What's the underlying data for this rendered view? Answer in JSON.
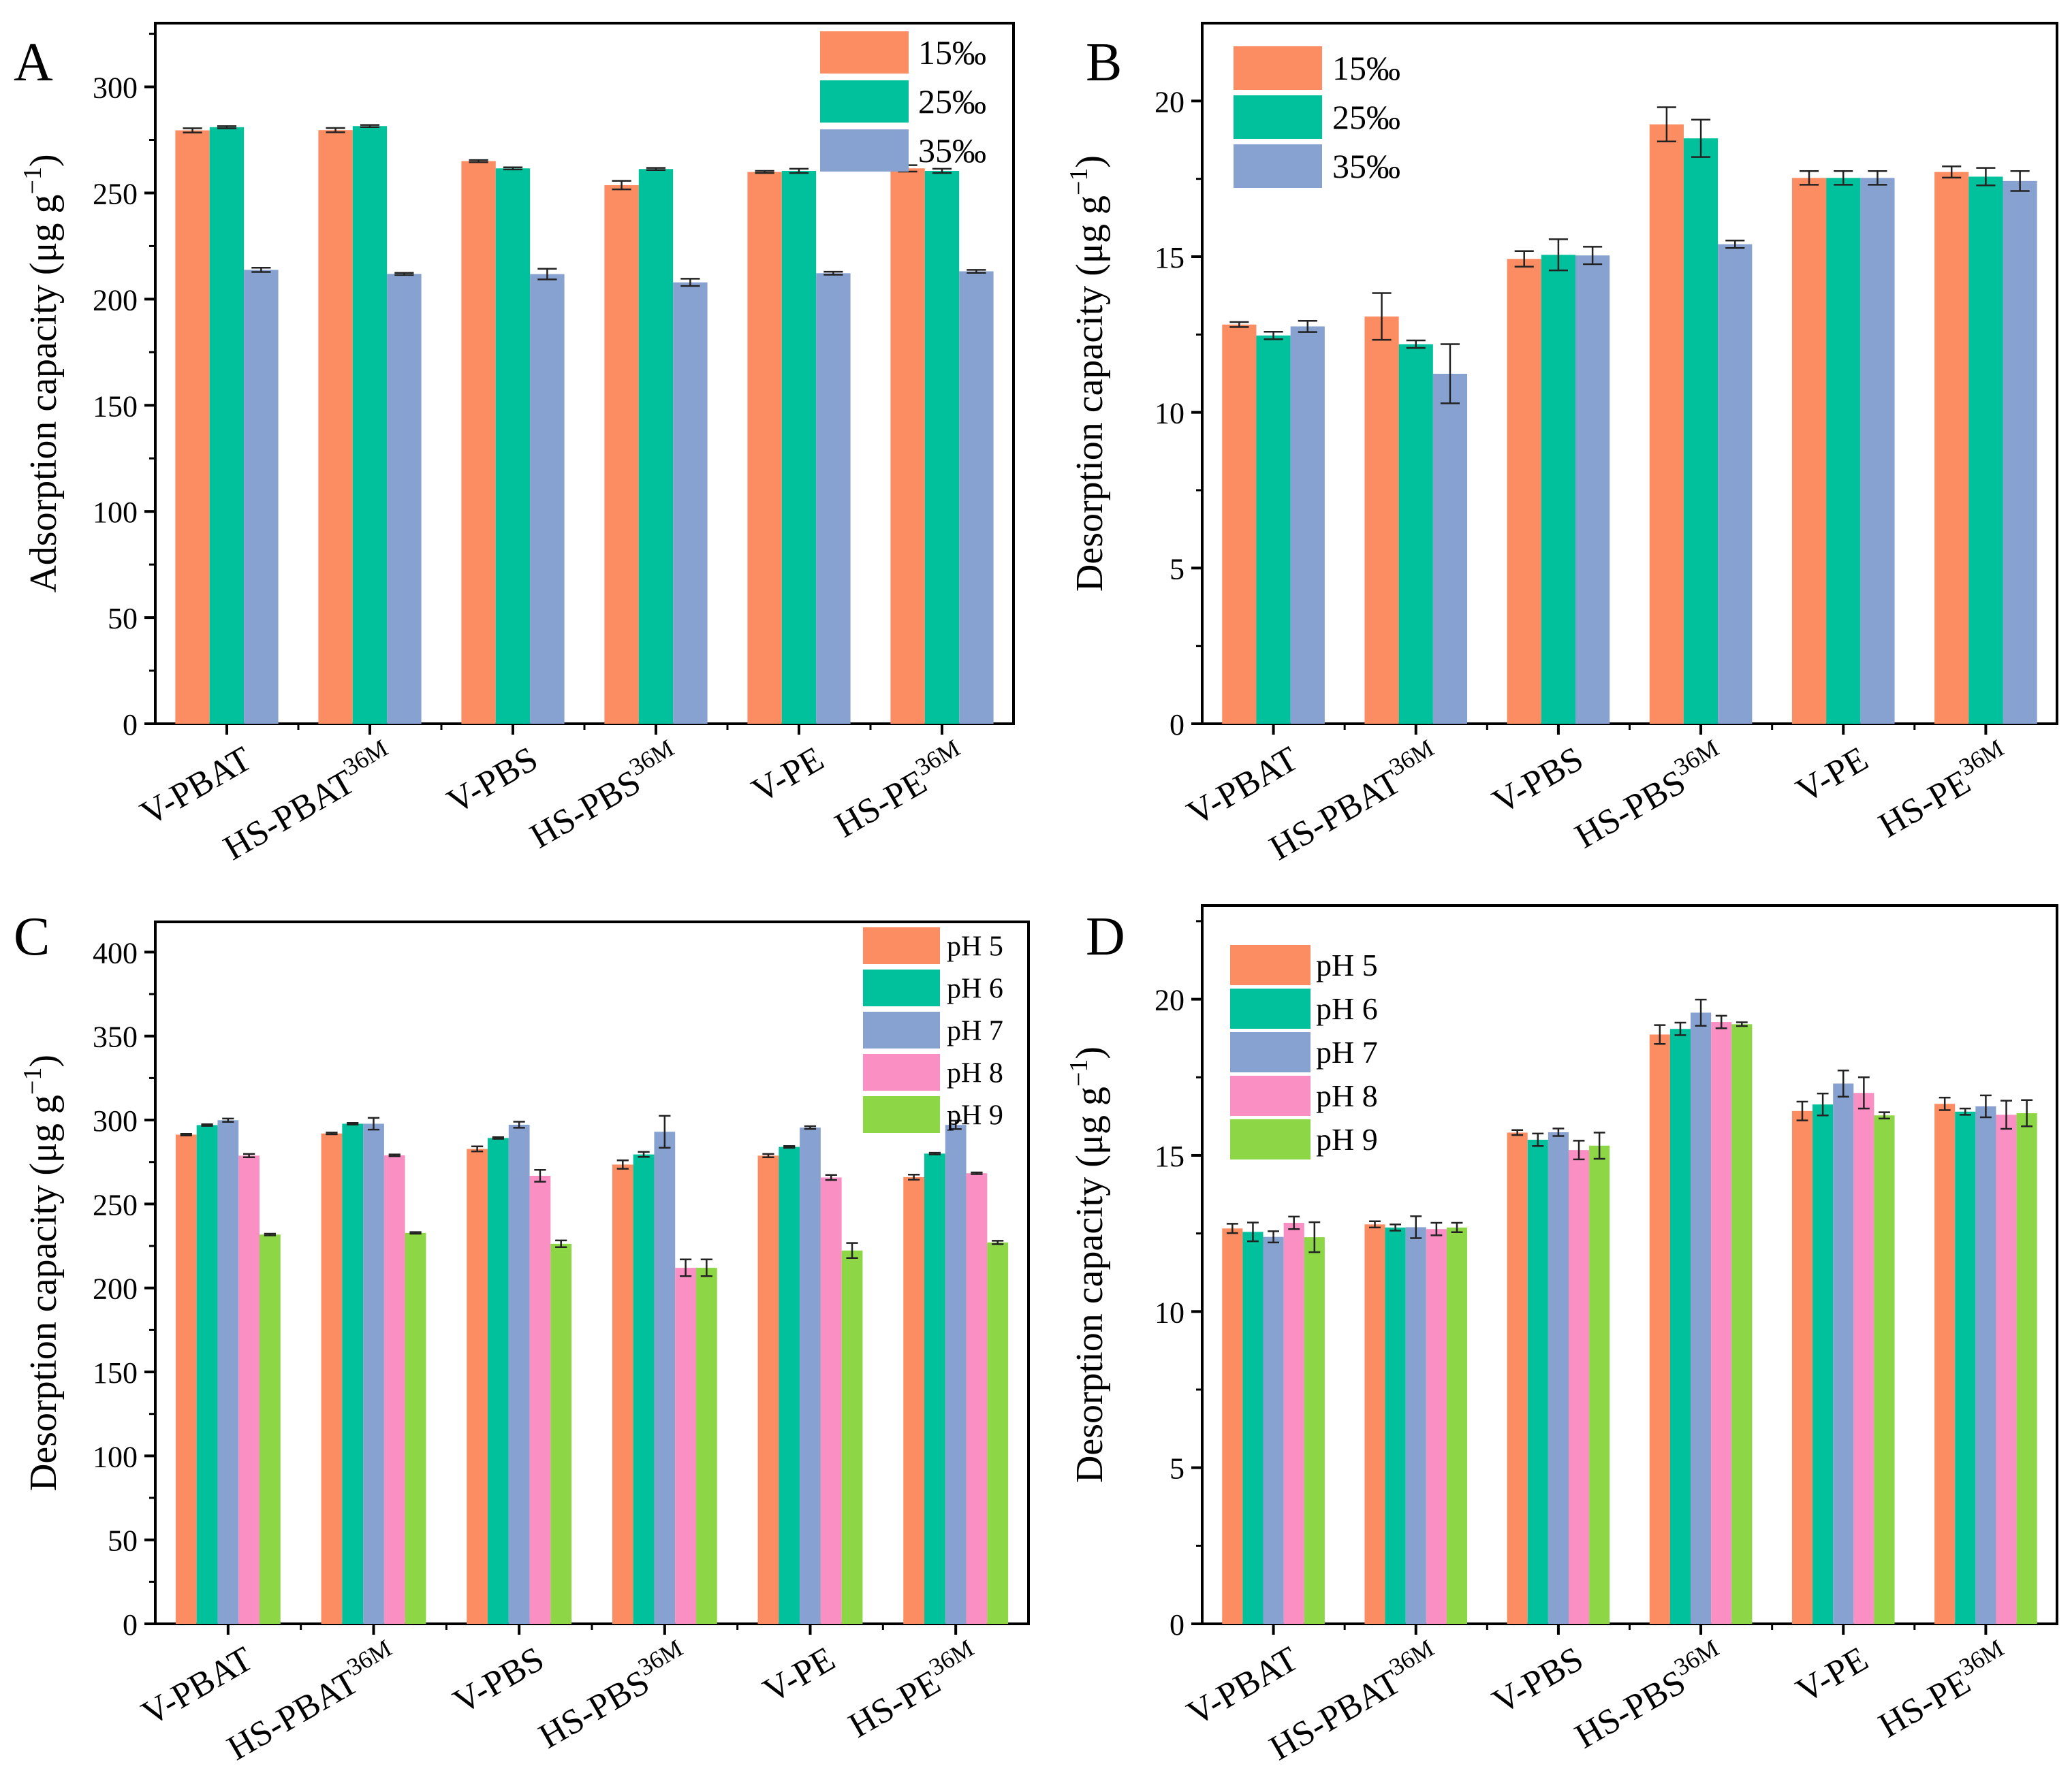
{
  "chart_data": [
    {
      "panel": "A",
      "type": "bar",
      "ylabel": "Adsorption capacity (μg g⁻¹)",
      "ylim": [
        0,
        330
      ],
      "yticks": [
        0,
        50,
        100,
        150,
        200,
        250,
        300
      ],
      "legend_position": "top-right",
      "categories": [
        {
          "base": "V-PBAT",
          "sup": ""
        },
        {
          "base": "HS-PBAT",
          "sup": "36M"
        },
        {
          "base": "V-PBS",
          "sup": ""
        },
        {
          "base": "HS-PBS",
          "sup": "36M"
        },
        {
          "base": "V-PE",
          "sup": ""
        },
        {
          "base": "HS-PE",
          "sup": "36M"
        }
      ],
      "series": [
        {
          "name": "15‰",
          "color": "#fc8d62",
          "values": [
            279.5,
            279.6,
            265.0,
            253.7,
            259.9,
            261.6
          ],
          "errors": [
            1.0,
            1.0,
            0.5,
            2.0,
            0.5,
            1.5
          ]
        },
        {
          "name": "25‰",
          "color": "#00c19b",
          "values": [
            281.0,
            281.5,
            261.6,
            261.3,
            260.4,
            260.4
          ],
          "errors": [
            0.5,
            0.5,
            0.5,
            0.5,
            1.0,
            1.0
          ]
        },
        {
          "name": "35‰",
          "color": "#87a2d0",
          "values": [
            213.8,
            211.9,
            211.8,
            207.9,
            212.2,
            213.1
          ],
          "errors": [
            1.0,
            0.5,
            2.5,
            1.7,
            0.7,
            0.7
          ]
        }
      ]
    },
    {
      "panel": "B",
      "type": "bar",
      "ylabel": "Desorption capacity (μg g⁻¹)",
      "ylim": [
        0,
        22.5
      ],
      "yticks": [
        0,
        5,
        10,
        15,
        20
      ],
      "legend_position": "top-left",
      "categories": [
        {
          "base": "V-PBAT",
          "sup": ""
        },
        {
          "base": "HS-PBAT",
          "sup": "36M"
        },
        {
          "base": "V-PBS",
          "sup": ""
        },
        {
          "base": "HS-PBS",
          "sup": "36M"
        },
        {
          "base": "V-PE",
          "sup": ""
        },
        {
          "base": "HS-PE",
          "sup": "36M"
        }
      ],
      "series": [
        {
          "name": "15‰",
          "color": "#fc8d62",
          "values": [
            12.82,
            13.08,
            14.93,
            19.25,
            17.53,
            17.72
          ],
          "errors": [
            0.08,
            0.75,
            0.25,
            0.55,
            0.22,
            0.18
          ]
        },
        {
          "name": "25‰",
          "color": "#00c19b",
          "values": [
            12.47,
            12.19,
            15.06,
            18.8,
            17.53,
            17.57
          ],
          "errors": [
            0.12,
            0.12,
            0.5,
            0.6,
            0.22,
            0.28
          ]
        },
        {
          "name": "35‰",
          "color": "#87a2d0",
          "values": [
            12.76,
            11.24,
            15.04,
            15.4,
            17.53,
            17.43
          ],
          "errors": [
            0.18,
            0.95,
            0.28,
            0.12,
            0.22,
            0.32
          ]
        }
      ]
    },
    {
      "panel": "C",
      "type": "bar",
      "ylabel": "Desorption capacity (μg g⁻¹)",
      "ylim": [
        0,
        418
      ],
      "yticks": [
        0,
        50,
        100,
        150,
        200,
        250,
        300,
        350,
        400
      ],
      "legend_position": "top-right",
      "categories": [
        {
          "base": "V-PBAT",
          "sup": ""
        },
        {
          "base": "HS-PBAT",
          "sup": "36M"
        },
        {
          "base": "V-PBS",
          "sup": ""
        },
        {
          "base": "HS-PBS",
          "sup": "36M"
        },
        {
          "base": "V-PE",
          "sup": ""
        },
        {
          "base": "HS-PE",
          "sup": "36M"
        }
      ],
      "series": [
        {
          "name": "pH 5",
          "color": "#fc8d62",
          "values": [
            291.3,
            292.0,
            282.8,
            273.5,
            278.8,
            266.0
          ],
          "errors": [
            0.5,
            0.5,
            1.5,
            2.5,
            1.0,
            1.5
          ]
        },
        {
          "name": "pH 6",
          "color": "#00c19b",
          "values": [
            297.0,
            297.8,
            289.3,
            279.5,
            284.0,
            280.0
          ],
          "errors": [
            0.5,
            0.5,
            0.5,
            1.5,
            0.5,
            0.5
          ]
        },
        {
          "name": "pH 7",
          "color": "#87a2d0",
          "values": [
            299.9,
            297.8,
            297.2,
            293.0,
            295.5,
            297.1
          ],
          "errors": [
            1.0,
            3.5,
            1.8,
            9.5,
            0.8,
            2.5
          ]
        },
        {
          "name": "pH 8",
          "color": "#fa8fc3",
          "values": [
            278.8,
            279.0,
            266.8,
            212.0,
            265.8,
            268.3
          ],
          "errors": [
            1.0,
            0.5,
            3.5,
            5.0,
            1.5,
            0.5
          ]
        },
        {
          "name": "pH 9",
          "color": "#8dd645",
          "values": [
            231.8,
            232.8,
            226.3,
            212.0,
            222.3,
            227.1
          ],
          "errors": [
            0.5,
            0.5,
            2.0,
            5.0,
            4.5,
            1.0
          ]
        }
      ]
    },
    {
      "panel": "D",
      "type": "bar",
      "ylabel": "Desorption capacity (μg g⁻¹)",
      "ylim": [
        0,
        23
      ],
      "yticks": [
        0,
        5,
        10,
        15,
        20
      ],
      "legend_position": "top-left",
      "categories": [
        {
          "base": "V-PBAT",
          "sup": ""
        },
        {
          "base": "HS-PBAT",
          "sup": "36M"
        },
        {
          "base": "V-PBS",
          "sup": ""
        },
        {
          "base": "HS-PBS",
          "sup": "36M"
        },
        {
          "base": "V-PE",
          "sup": ""
        },
        {
          "base": "HS-PE",
          "sup": "36M"
        }
      ],
      "series": [
        {
          "name": "pH 5",
          "color": "#fc8d62",
          "values": [
            12.66,
            12.79,
            15.73,
            18.87,
            16.42,
            16.65
          ],
          "errors": [
            0.15,
            0.1,
            0.08,
            0.3,
            0.3,
            0.2
          ]
        },
        {
          "name": "pH 6",
          "color": "#00c19b",
          "values": [
            12.55,
            12.69,
            15.5,
            19.05,
            16.63,
            16.4
          ],
          "errors": [
            0.3,
            0.1,
            0.2,
            0.2,
            0.35,
            0.1
          ]
        },
        {
          "name": "pH 7",
          "color": "#87a2d0",
          "values": [
            12.39,
            12.7,
            15.74,
            19.57,
            17.3,
            16.57
          ],
          "errors": [
            0.18,
            0.35,
            0.12,
            0.42,
            0.42,
            0.35
          ]
        },
        {
          "name": "pH 8",
          "color": "#fa8fc3",
          "values": [
            12.84,
            12.64,
            15.17,
            19.27,
            17.0,
            16.3
          ],
          "errors": [
            0.2,
            0.2,
            0.3,
            0.2,
            0.5,
            0.45
          ]
        },
        {
          "name": "pH 9",
          "color": "#8dd645",
          "values": [
            12.38,
            12.69,
            15.31,
            19.2,
            16.28,
            16.35
          ],
          "errors": [
            0.48,
            0.15,
            0.42,
            0.06,
            0.1,
            0.42
          ]
        }
      ]
    }
  ]
}
